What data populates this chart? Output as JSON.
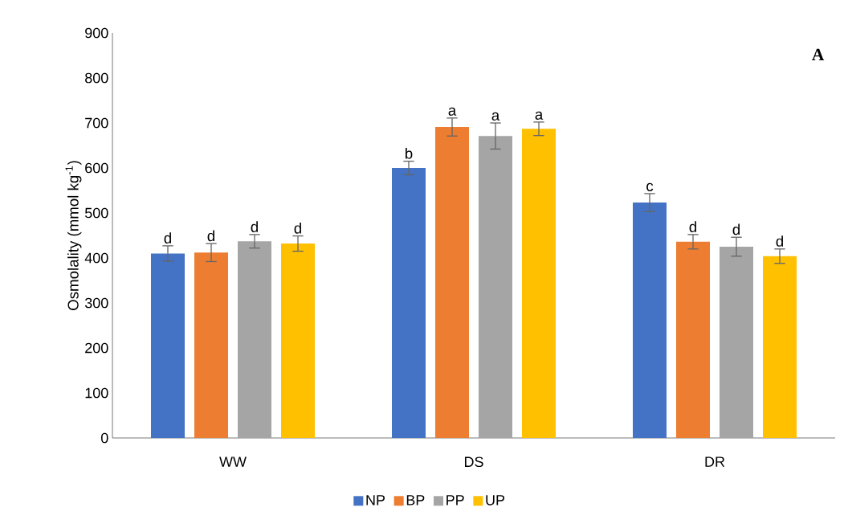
{
  "chart_data": {
    "type": "bar",
    "ylabel": "Osmolality (mmol kg$^{-1}$)",
    "categories": [
      "WW",
      "DS",
      "DR"
    ],
    "series": [
      {
        "name": "NP",
        "color": "#4472c4",
        "values": [
          410,
          600,
          523
        ],
        "errors": [
          17,
          15,
          20
        ],
        "value_labels": [
          "d",
          "b",
          "c"
        ]
      },
      {
        "name": "BP",
        "color": "#ed7d31",
        "values": [
          412,
          691,
          436
        ],
        "errors": [
          20,
          20,
          16
        ],
        "value_labels": [
          "d",
          "a",
          "d"
        ]
      },
      {
        "name": "PP",
        "color": "#a5a5a5",
        "values": [
          437,
          671,
          425
        ],
        "errors": [
          15,
          29,
          21
        ],
        "value_labels": [
          "d",
          "a",
          "d"
        ]
      },
      {
        "name": "UP",
        "color": "#ffc000",
        "values": [
          432,
          687,
          404
        ],
        "errors": [
          17,
          15,
          16
        ],
        "value_labels": [
          "d",
          "a",
          "d"
        ]
      }
    ],
    "ylim": [
      0,
      900
    ],
    "yticks": [
      0,
      100,
      200,
      300,
      400,
      500,
      600,
      700,
      800,
      900
    ],
    "grid": false,
    "legend": "bottom",
    "annotations": [
      "A"
    ]
  }
}
